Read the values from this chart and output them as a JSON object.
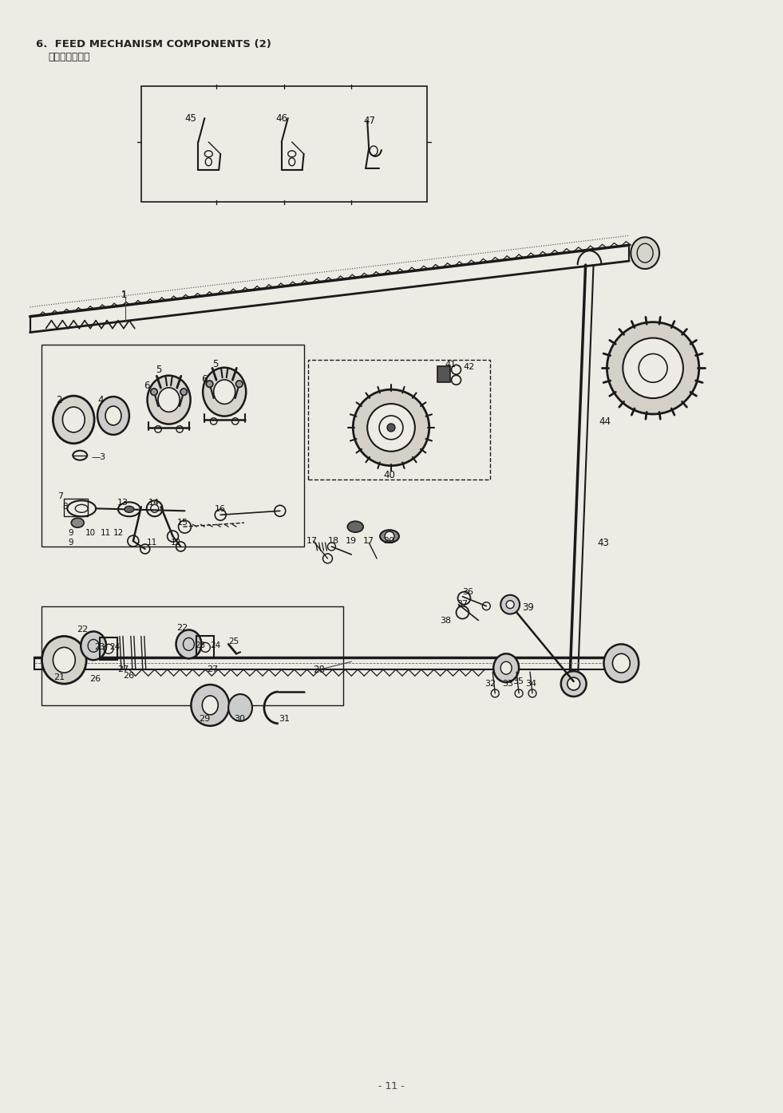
{
  "title_en": "6.  FEED MECHANISM COMPONENTS (2)",
  "title_jp": "送り関係（２）",
  "page_number": "- 11 -",
  "bg_color": "#eeebe4",
  "line_color": "#1a1a1a",
  "text_color": "#111111",
  "fig_w": 9.81,
  "fig_h": 13.95,
  "dpi": 100
}
